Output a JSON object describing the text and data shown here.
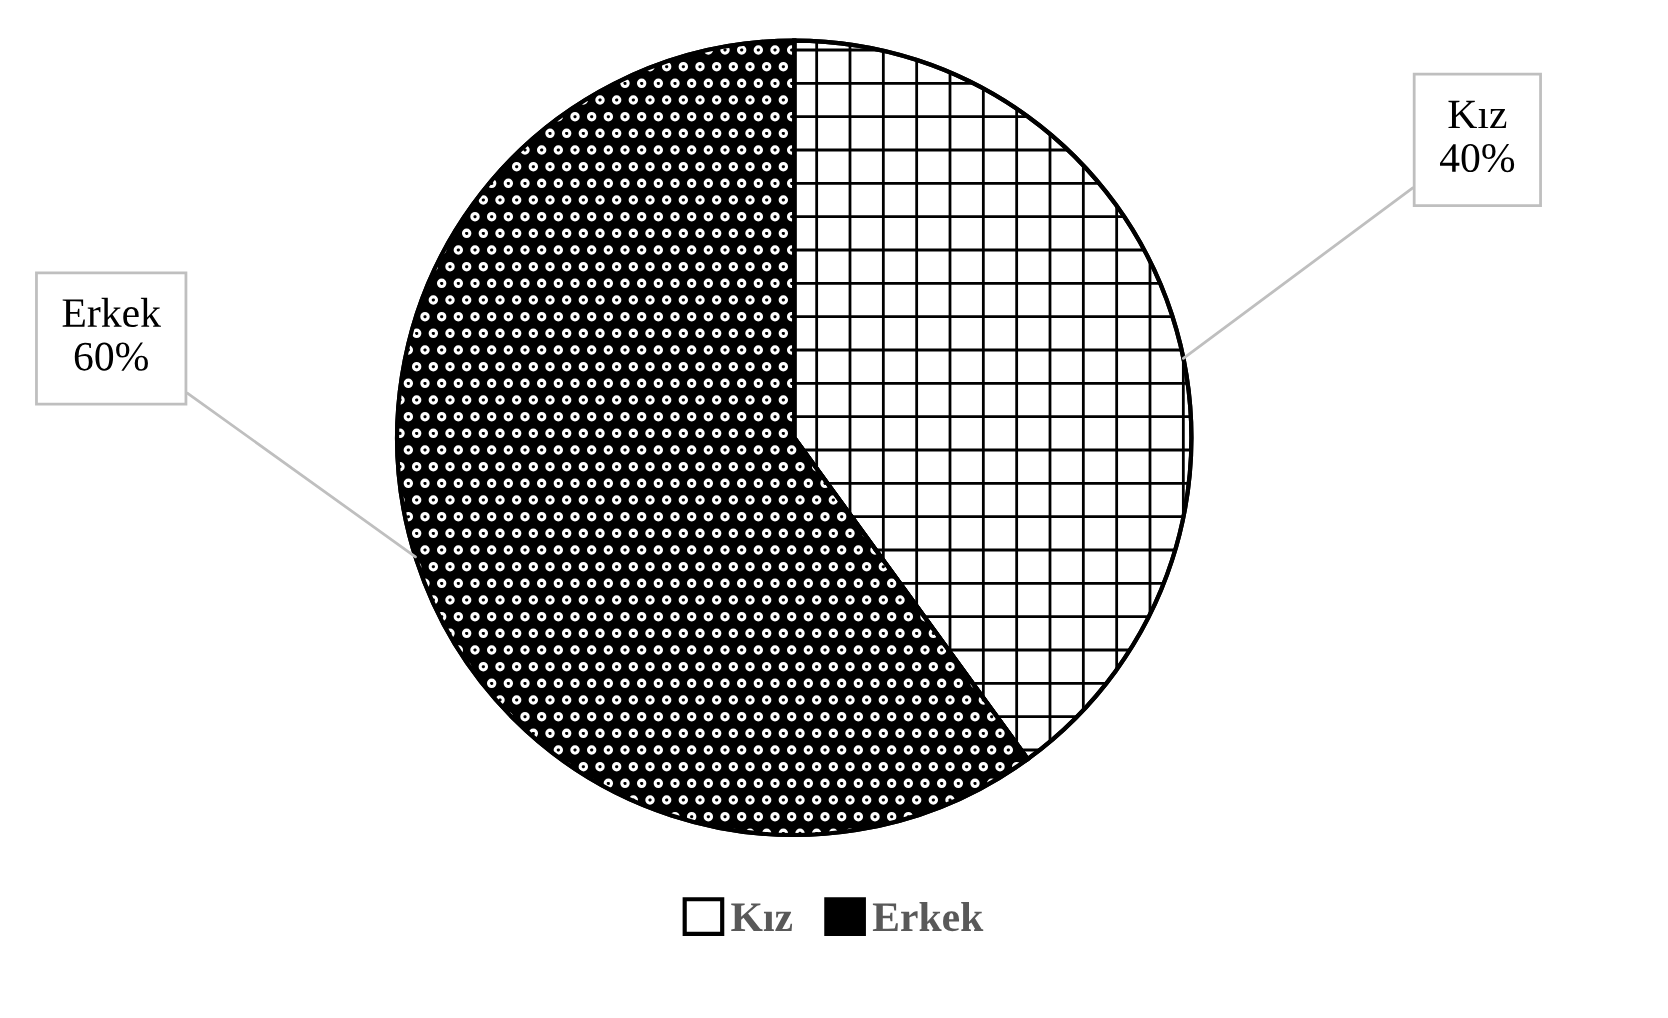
{
  "chart_data": {
    "type": "pie",
    "categories": [
      "Kız",
      "Erkek"
    ],
    "values": [
      40,
      60
    ],
    "colors": [
      "#ffffff",
      "#000000"
    ],
    "value_labels": [
      "40%",
      "60%"
    ],
    "legend": "bottom"
  }
}
